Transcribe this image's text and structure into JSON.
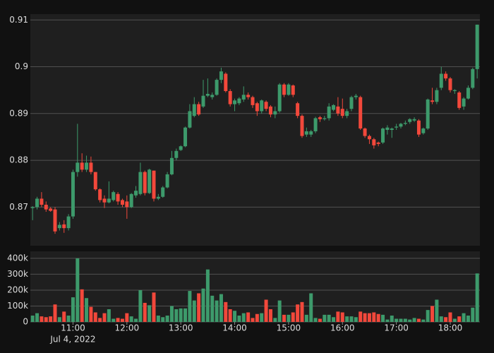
{
  "chart_data": {
    "type": "candlestick",
    "x": [
      "2022-07-04T10:15",
      "2022-07-04T10:20",
      "2022-07-04T10:25",
      "2022-07-04T10:30",
      "2022-07-04T10:35",
      "2022-07-04T10:40",
      "2022-07-04T10:45",
      "2022-07-04T10:50",
      "2022-07-04T10:55",
      "2022-07-04T11:00",
      "2022-07-04T11:05",
      "2022-07-04T11:10",
      "2022-07-04T11:15",
      "2022-07-04T11:20",
      "2022-07-04T11:25",
      "2022-07-04T11:30",
      "2022-07-04T11:35",
      "2022-07-04T11:40",
      "2022-07-04T11:45",
      "2022-07-04T11:50",
      "2022-07-04T11:55",
      "2022-07-04T12:00",
      "2022-07-04T12:05",
      "2022-07-04T12:10",
      "2022-07-04T12:15",
      "2022-07-04T12:20",
      "2022-07-04T12:25",
      "2022-07-04T12:30",
      "2022-07-04T12:35",
      "2022-07-04T12:40",
      "2022-07-04T12:45",
      "2022-07-04T12:50",
      "2022-07-04T12:55",
      "2022-07-04T13:00",
      "2022-07-04T13:05",
      "2022-07-04T13:10",
      "2022-07-04T13:15",
      "2022-07-04T13:20",
      "2022-07-04T13:25",
      "2022-07-04T13:30",
      "2022-07-04T13:35",
      "2022-07-04T13:40",
      "2022-07-04T13:45",
      "2022-07-04T13:50",
      "2022-07-04T13:55",
      "2022-07-04T14:00",
      "2022-07-04T14:05",
      "2022-07-04T14:10",
      "2022-07-04T14:15",
      "2022-07-04T14:20",
      "2022-07-04T14:25",
      "2022-07-04T14:30",
      "2022-07-04T14:35",
      "2022-07-04T14:40",
      "2022-07-04T14:45",
      "2022-07-04T14:50",
      "2022-07-04T14:55",
      "2022-07-04T15:00",
      "2022-07-04T15:05",
      "2022-07-04T15:10",
      "2022-07-04T15:15",
      "2022-07-04T15:20",
      "2022-07-04T15:25",
      "2022-07-04T15:30",
      "2022-07-04T15:35",
      "2022-07-04T15:40",
      "2022-07-04T15:45",
      "2022-07-04T15:50",
      "2022-07-04T15:55",
      "2022-07-04T16:00",
      "2022-07-04T16:05",
      "2022-07-04T16:10",
      "2022-07-04T16:15",
      "2022-07-04T16:20",
      "2022-07-04T16:25",
      "2022-07-04T16:30",
      "2022-07-04T16:35",
      "2022-07-04T16:40",
      "2022-07-04T16:45",
      "2022-07-04T16:50",
      "2022-07-04T16:55",
      "2022-07-04T17:00",
      "2022-07-04T17:05",
      "2022-07-04T17:10",
      "2022-07-04T17:15",
      "2022-07-04T17:20",
      "2022-07-04T17:25",
      "2022-07-04T17:30",
      "2022-07-04T17:35",
      "2022-07-04T17:40",
      "2022-07-04T17:45",
      "2022-07-04T17:50",
      "2022-07-04T17:55",
      "2022-07-04T18:00",
      "2022-07-04T18:05",
      "2022-07-04T18:10",
      "2022-07-04T18:15",
      "2022-07-04T18:20",
      "2022-07-04T18:25",
      "2022-07-04T18:30"
    ],
    "open": [
      0.8698,
      0.87,
      0.8718,
      0.8705,
      0.8697,
      0.8695,
      0.8655,
      0.8663,
      0.8655,
      0.868,
      0.8775,
      0.8795,
      0.878,
      0.8795,
      0.8775,
      0.8738,
      0.8718,
      0.871,
      0.8715,
      0.8728,
      0.8715,
      0.8712,
      0.87,
      0.8725,
      0.8728,
      0.8775,
      0.873,
      0.8778,
      0.8718,
      0.8722,
      0.8742,
      0.877,
      0.8805,
      0.8822,
      0.883,
      0.887,
      0.8895,
      0.892,
      0.8915,
      0.8938,
      0.8935,
      0.894,
      0.8972,
      0.8985,
      0.8948,
      0.892,
      0.8922,
      0.893,
      0.894,
      0.8935,
      0.8922,
      0.8905,
      0.8925,
      0.8915,
      0.8898,
      0.8905,
      0.8962,
      0.894,
      0.896,
      0.8922,
      0.8895,
      0.8855,
      0.8855,
      0.8862,
      0.8892,
      0.8888,
      0.889,
      0.8908,
      0.8915,
      0.891,
      0.8895,
      0.891,
      0.8935,
      0.8935,
      0.8868,
      0.8852,
      0.8845,
      0.8838,
      0.8838,
      0.8865,
      0.8865,
      0.887,
      0.8872,
      0.8878,
      0.8882,
      0.8885,
      0.8885,
      0.8858,
      0.8868,
      0.8928,
      0.8925,
      0.8955,
      0.8985,
      0.8975,
      0.8948,
      0.8945,
      0.8915,
      0.8932,
      0.8955,
      0.8995
    ],
    "high": [
      0.8702,
      0.8722,
      0.8732,
      0.8712,
      0.87,
      0.87,
      0.8668,
      0.8672,
      0.8685,
      0.878,
      0.8878,
      0.8815,
      0.881,
      0.8808,
      0.8775,
      0.874,
      0.8725,
      0.8755,
      0.8735,
      0.8732,
      0.8718,
      0.8725,
      0.873,
      0.8745,
      0.8795,
      0.8778,
      0.8782,
      0.8778,
      0.8728,
      0.8745,
      0.8775,
      0.882,
      0.8825,
      0.8832,
      0.8872,
      0.892,
      0.8935,
      0.8925,
      0.8972,
      0.8975,
      0.8945,
      0.8975,
      0.8998,
      0.8988,
      0.8952,
      0.8932,
      0.8935,
      0.8958,
      0.8945,
      0.8938,
      0.8925,
      0.893,
      0.8928,
      0.8918,
      0.8915,
      0.8965,
      0.8965,
      0.8965,
      0.8962,
      0.8925,
      0.8898,
      0.887,
      0.8865,
      0.8893,
      0.8895,
      0.8895,
      0.8922,
      0.892,
      0.8935,
      0.8932,
      0.891,
      0.8938,
      0.8942,
      0.8938,
      0.887,
      0.8855,
      0.8848,
      0.884,
      0.887,
      0.8875,
      0.887,
      0.8878,
      0.888,
      0.8885,
      0.889,
      0.8892,
      0.8888,
      0.887,
      0.8932,
      0.8955,
      0.8955,
      0.9,
      0.899,
      0.8978,
      0.8952,
      0.8948,
      0.8935,
      0.896,
      0.8998,
      0.909
    ],
    "low": [
      0.8672,
      0.8695,
      0.87,
      0.869,
      0.869,
      0.8643,
      0.865,
      0.8645,
      0.865,
      0.8675,
      0.8765,
      0.8775,
      0.8775,
      0.877,
      0.8735,
      0.871,
      0.8698,
      0.8708,
      0.8712,
      0.8705,
      0.87,
      0.8675,
      0.8698,
      0.872,
      0.8725,
      0.8725,
      0.8728,
      0.8712,
      0.8715,
      0.872,
      0.874,
      0.8768,
      0.88,
      0.882,
      0.8828,
      0.8868,
      0.8892,
      0.8895,
      0.8912,
      0.8935,
      0.893,
      0.8938,
      0.8965,
      0.8945,
      0.8915,
      0.8905,
      0.8918,
      0.8925,
      0.893,
      0.8912,
      0.8895,
      0.89,
      0.8905,
      0.8892,
      0.889,
      0.8902,
      0.8935,
      0.8938,
      0.8935,
      0.889,
      0.8848,
      0.885,
      0.885,
      0.8858,
      0.8882,
      0.8885,
      0.8885,
      0.8905,
      0.8895,
      0.889,
      0.889,
      0.8905,
      0.893,
      0.8865,
      0.8848,
      0.8835,
      0.8825,
      0.883,
      0.8835,
      0.8855,
      0.8848,
      0.8865,
      0.8868,
      0.8875,
      0.8878,
      0.8882,
      0.885,
      0.8855,
      0.8865,
      0.892,
      0.892,
      0.895,
      0.897,
      0.8945,
      0.8942,
      0.8908,
      0.8908,
      0.893,
      0.8952,
      0.8975
    ],
    "close": [
      0.87,
      0.8718,
      0.8705,
      0.8695,
      0.8692,
      0.8648,
      0.8662,
      0.8655,
      0.868,
      0.8775,
      0.8795,
      0.878,
      0.8795,
      0.8775,
      0.8738,
      0.8715,
      0.871,
      0.8718,
      0.8732,
      0.8712,
      0.8705,
      0.87,
      0.8728,
      0.8735,
      0.8775,
      0.873,
      0.878,
      0.8718,
      0.8722,
      0.8742,
      0.877,
      0.8805,
      0.882,
      0.883,
      0.887,
      0.8905,
      0.892,
      0.8898,
      0.8938,
      0.8942,
      0.894,
      0.8972,
      0.899,
      0.8948,
      0.892,
      0.8928,
      0.8932,
      0.894,
      0.8935,
      0.8918,
      0.8905,
      0.8928,
      0.891,
      0.8898,
      0.8905,
      0.8962,
      0.894,
      0.8962,
      0.894,
      0.8895,
      0.8852,
      0.8862,
      0.8862,
      0.889,
      0.8888,
      0.889,
      0.8915,
      0.8918,
      0.89,
      0.8895,
      0.8905,
      0.8935,
      0.8938,
      0.8868,
      0.8852,
      0.8845,
      0.8832,
      0.8835,
      0.8868,
      0.887,
      0.8868,
      0.8872,
      0.8878,
      0.888,
      0.8888,
      0.8888,
      0.8855,
      0.8868,
      0.893,
      0.8925,
      0.895,
      0.8985,
      0.8975,
      0.895,
      0.895,
      0.8912,
      0.8932,
      0.8955,
      0.8995,
      0.909
    ],
    "volume": [
      40000,
      55000,
      35000,
      30000,
      35000,
      110000,
      30000,
      65000,
      40000,
      155000,
      400000,
      205000,
      150000,
      95000,
      60000,
      25000,
      55000,
      80000,
      20000,
      25000,
      20000,
      55000,
      35000,
      20000,
      200000,
      120000,
      105000,
      185000,
      40000,
      30000,
      40000,
      100000,
      80000,
      85000,
      85000,
      195000,
      135000,
      180000,
      210000,
      330000,
      165000,
      135000,
      175000,
      125000,
      80000,
      70000,
      40000,
      55000,
      60000,
      25000,
      50000,
      55000,
      140000,
      80000,
      25000,
      135000,
      45000,
      45000,
      60000,
      110000,
      125000,
      45000,
      180000,
      25000,
      20000,
      45000,
      45000,
      30000,
      65000,
      60000,
      35000,
      35000,
      30000,
      65000,
      55000,
      55000,
      60000,
      50000,
      45000,
      15000,
      40000,
      20000,
      20000,
      20000,
      15000,
      25000,
      20000,
      15000,
      75000,
      100000,
      140000,
      35000,
      30000,
      60000,
      20000,
      35000,
      55000,
      40000,
      90000,
      305000
    ],
    "up_color": "#3d9a6b",
    "down_color": "#f2483b",
    "xlim": [
      "2022-07-04T10:12:30",
      "2022-07-04T18:33:00"
    ],
    "xticks": [
      {
        "value": "2022-07-04T11:00",
        "label": "11:00"
      },
      {
        "value": "2022-07-04T12:00",
        "label": "12:00"
      },
      {
        "value": "2022-07-04T13:00",
        "label": "13:00"
      },
      {
        "value": "2022-07-04T14:00",
        "label": "14:00"
      },
      {
        "value": "2022-07-04T15:00",
        "label": "15:00"
      },
      {
        "value": "2022-07-04T16:00",
        "label": "16:00"
      },
      {
        "value": "2022-07-04T17:00",
        "label": "17:00"
      },
      {
        "value": "2022-07-04T18:00",
        "label": "18:00"
      }
    ],
    "x_date_label": "Jul 4, 2022",
    "ylim": [
      0.86175,
      0.91125
    ],
    "yticks": [
      0.87,
      0.88,
      0.89,
      0.9,
      0.91
    ],
    "volume_ylim": [
      0,
      444000
    ],
    "volume_yticks": [
      {
        "value": 0,
        "label": "0"
      },
      {
        "value": 100000,
        "label": "100k"
      },
      {
        "value": 200000,
        "label": "200k"
      },
      {
        "value": 300000,
        "label": "300k"
      },
      {
        "value": 400000,
        "label": "400k"
      }
    ],
    "grid": true
  }
}
